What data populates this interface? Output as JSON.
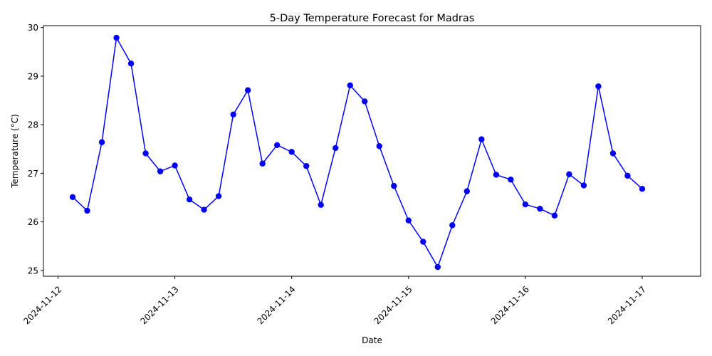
{
  "chart_data": {
    "type": "line",
    "title": "5-Day Temperature Forecast for Madras",
    "xlabel": "Date",
    "ylabel": "Temperature (°C)",
    "x_tick_labels": [
      "2024-11-12",
      "2024-11-13",
      "2024-11-14",
      "2024-11-15",
      "2024-11-16",
      "2024-11-17"
    ],
    "y_tick_labels": [
      "25",
      "26",
      "27",
      "28",
      "29",
      "30"
    ],
    "y_ticks": [
      25,
      26,
      27,
      28,
      29,
      30
    ],
    "xlim": [
      "2024-11-11 21:00",
      "2024-11-17 12:00"
    ],
    "ylim": [
      24.88,
      30.04
    ],
    "grid": false,
    "legend": "none",
    "series": [
      {
        "color": "#0000ff",
        "marker": "circle",
        "points": [
          {
            "x": "2024-11-12 03:00",
            "y": 26.51
          },
          {
            "x": "2024-11-12 06:00",
            "y": 26.23
          },
          {
            "x": "2024-11-12 09:00",
            "y": 27.64
          },
          {
            "x": "2024-11-12 12:00",
            "y": 29.79
          },
          {
            "x": "2024-11-12 15:00",
            "y": 29.26
          },
          {
            "x": "2024-11-12 18:00",
            "y": 27.41
          },
          {
            "x": "2024-11-12 21:00",
            "y": 27.04
          },
          {
            "x": "2024-11-13 00:00",
            "y": 27.16
          },
          {
            "x": "2024-11-13 03:00",
            "y": 26.46
          },
          {
            "x": "2024-11-13 06:00",
            "y": 26.25
          },
          {
            "x": "2024-11-13 09:00",
            "y": 26.53
          },
          {
            "x": "2024-11-13 12:00",
            "y": 28.21
          },
          {
            "x": "2024-11-13 15:00",
            "y": 28.71
          },
          {
            "x": "2024-11-13 18:00",
            "y": 27.2
          },
          {
            "x": "2024-11-13 21:00",
            "y": 27.58
          },
          {
            "x": "2024-11-14 00:00",
            "y": 27.44
          },
          {
            "x": "2024-11-14 03:00",
            "y": 27.15
          },
          {
            "x": "2024-11-14 06:00",
            "y": 26.35
          },
          {
            "x": "2024-11-14 09:00",
            "y": 27.52
          },
          {
            "x": "2024-11-14 12:00",
            "y": 28.81
          },
          {
            "x": "2024-11-14 15:00",
            "y": 28.48
          },
          {
            "x": "2024-11-14 18:00",
            "y": 27.56
          },
          {
            "x": "2024-11-14 21:00",
            "y": 26.74
          },
          {
            "x": "2024-11-15 00:00",
            "y": 26.03
          },
          {
            "x": "2024-11-15 03:00",
            "y": 25.59
          },
          {
            "x": "2024-11-15 06:00",
            "y": 25.07
          },
          {
            "x": "2024-11-15 09:00",
            "y": 25.93
          },
          {
            "x": "2024-11-15 12:00",
            "y": 26.63
          },
          {
            "x": "2024-11-15 15:00",
            "y": 27.7
          },
          {
            "x": "2024-11-15 18:00",
            "y": 26.97
          },
          {
            "x": "2024-11-15 21:00",
            "y": 26.87
          },
          {
            "x": "2024-11-16 00:00",
            "y": 26.36
          },
          {
            "x": "2024-11-16 03:00",
            "y": 26.27
          },
          {
            "x": "2024-11-16 06:00",
            "y": 26.13
          },
          {
            "x": "2024-11-16 09:00",
            "y": 26.98
          },
          {
            "x": "2024-11-16 12:00",
            "y": 26.75
          },
          {
            "x": "2024-11-16 15:00",
            "y": 28.79
          },
          {
            "x": "2024-11-16 18:00",
            "y": 27.41
          },
          {
            "x": "2024-11-16 21:00",
            "y": 26.95
          },
          {
            "x": "2024-11-17 00:00",
            "y": 26.68
          }
        ]
      }
    ]
  }
}
